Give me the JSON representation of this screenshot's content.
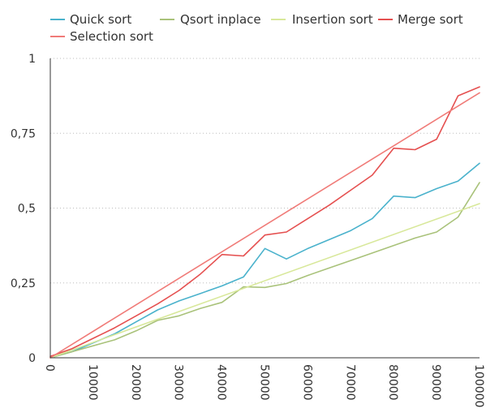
{
  "chart_data": {
    "type": "line",
    "title": "",
    "xlabel": "",
    "ylabel": "",
    "xlim": [
      0,
      100000
    ],
    "ylim": [
      0,
      1
    ],
    "x_ticks": [
      0,
      10000,
      20000,
      30000,
      40000,
      50000,
      60000,
      70000,
      80000,
      90000,
      100000
    ],
    "x_tick_labels": [
      "0",
      "10000",
      "20000",
      "30000",
      "40000",
      "50000",
      "60000",
      "70000",
      "80000",
      "90000",
      "100000"
    ],
    "y_ticks": [
      0,
      0.25,
      0.5,
      0.75,
      1
    ],
    "y_tick_labels": [
      "0",
      "0,25",
      "0,5",
      "0,75",
      "1"
    ],
    "grid": "horizontal-dotted",
    "legend_position": "top",
    "legend": [
      "Quick sort",
      "Qsort inplace",
      "Insertion sort",
      "Merge sort",
      "Selection sort"
    ],
    "series": [
      {
        "name": "Quick sort",
        "color": "#4ab2cc",
        "x": [
          0,
          5000,
          10000,
          15000,
          20000,
          25000,
          30000,
          35000,
          40000,
          45000,
          50000,
          55000,
          60000,
          65000,
          70000,
          75000,
          80000,
          85000,
          90000,
          95000,
          100000
        ],
        "y": [
          0,
          0.02,
          0.05,
          0.08,
          0.12,
          0.16,
          0.19,
          0.215,
          0.24,
          0.27,
          0.365,
          0.33,
          0.365,
          0.395,
          0.425,
          0.465,
          0.54,
          0.535,
          0.565,
          0.59,
          0.65
        ]
      },
      {
        "name": "Qsort inplace",
        "color": "#a9c27a",
        "x": [
          0,
          5000,
          10000,
          15000,
          20000,
          25000,
          30000,
          35000,
          40000,
          45000,
          50000,
          55000,
          60000,
          65000,
          70000,
          75000,
          80000,
          85000,
          90000,
          95000,
          100000
        ],
        "y": [
          0,
          0.02,
          0.04,
          0.06,
          0.09,
          0.125,
          0.14,
          0.165,
          0.185,
          0.237,
          0.235,
          0.248,
          0.275,
          0.3,
          0.325,
          0.35,
          0.375,
          0.4,
          0.42,
          0.47,
          0.585
        ]
      },
      {
        "name": "Insertion sort",
        "color": "#d8e89a",
        "x": [
          0,
          100000
        ],
        "y": [
          0,
          0.515
        ]
      },
      {
        "name": "Merge sort",
        "color": "#e55050",
        "x": [
          0,
          5000,
          10000,
          15000,
          20000,
          25000,
          30000,
          35000,
          40000,
          45000,
          50000,
          55000,
          60000,
          65000,
          70000,
          75000,
          80000,
          85000,
          90000,
          95000,
          100000
        ],
        "y": [
          0.005,
          0.03,
          0.065,
          0.1,
          0.14,
          0.18,
          0.225,
          0.28,
          0.345,
          0.34,
          0.41,
          0.42,
          0.465,
          0.51,
          0.56,
          0.61,
          0.7,
          0.695,
          0.73,
          0.875,
          0.905
        ]
      },
      {
        "name": "Selection sort",
        "color": "#f07b78",
        "x": [
          0,
          100000
        ],
        "y": [
          0,
          0.885
        ]
      }
    ]
  }
}
